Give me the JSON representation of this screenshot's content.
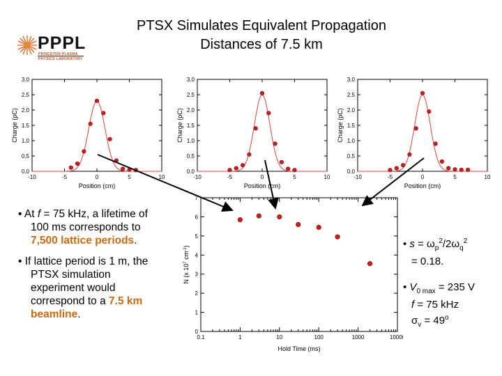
{
  "title": {
    "line1": "PTSX Simulates Equivalent Propagation",
    "line2": "Distances of 7.5 km"
  },
  "logo": {
    "word": "PPPL",
    "sub1": "PRINCETON PLASMA",
    "sub2": "PHYSICS LABORATORY"
  },
  "colors": {
    "marker": "#c81e1e",
    "fit": "#d84040",
    "accent": "#c96a10"
  },
  "left_text": {
    "b1": [
      "• At ",
      "f",
      " = 75 kHz, a lifetime of",
      "100 ms corresponds to",
      "7,500 lattice periods",
      "."
    ],
    "b2": [
      "• If lattice period is 1 m, the",
      "PTSX simulation",
      "experiment would",
      "correspond to a ",
      "7.5 km",
      "beamline",
      "."
    ]
  },
  "right_text": {
    "b1_prefix": "• ",
    "b1_s": "s",
    "b1_eq": " = ",
    "b1_w": "ω",
    "b1_p": "p",
    "b1_sq1": "2",
    "b1_div": "/2",
    "b1_w2": "ω",
    "b1_q": "q",
    "b1_sq2": "2",
    "b1_val": "= 0.18.",
    "b2_prefix": "• ",
    "b2_V": "V",
    "b2_sub": "0 max",
    "b2_v": " = 235 V",
    "b2_f": "f",
    "b2_fv": " = 75 kHz",
    "b2_sigma": "σ",
    "b2_sigsub": "v",
    "b2_sigv": " = 49",
    "b2_deg": "o"
  },
  "chart_data": [
    {
      "type": "scatter",
      "xlabel": "Position (cm)",
      "ylabel": "Charge (pC)",
      "xlim": [
        -10,
        10
      ],
      "ylim": [
        0,
        3
      ],
      "xticks": [
        -10,
        -5,
        0,
        5,
        10
      ],
      "yticks": [
        0.0,
        0.5,
        1.0,
        1.5,
        2.0,
        2.5,
        3.0
      ],
      "x": [
        -4,
        -3,
        -2,
        -1,
        0,
        1,
        2,
        3,
        4,
        5,
        6
      ],
      "y": [
        0.12,
        0.25,
        0.65,
        1.55,
        2.3,
        1.9,
        1.05,
        0.35,
        0.08,
        0.05,
        0.04
      ],
      "fit": "gaussian",
      "fit_center": 0,
      "fit_amp": 2.3,
      "fit_sigma": 1.25
    },
    {
      "type": "scatter",
      "xlabel": "Position (cm)",
      "ylabel": "Charge (pC)",
      "xlim": [
        -10,
        10
      ],
      "ylim": [
        0,
        3
      ],
      "xticks": [
        -10,
        -5,
        0,
        5,
        10
      ],
      "yticks": [
        0.0,
        0.5,
        1.0,
        1.5,
        2.0,
        2.5,
        3.0
      ],
      "x": [
        -5,
        -4,
        -3,
        -2,
        -1,
        0,
        1,
        2,
        3,
        4,
        5
      ],
      "y": [
        0.04,
        0.1,
        0.2,
        0.55,
        1.4,
        2.55,
        1.9,
        0.9,
        0.3,
        0.08,
        0.04
      ],
      "fit": "gaussian",
      "fit_center": 0,
      "fit_amp": 2.5,
      "fit_sigma": 1.2
    },
    {
      "type": "scatter",
      "xlabel": "Position (cm)",
      "ylabel": "Charge (pC)",
      "xlim": [
        -10,
        10
      ],
      "ylim": [
        0,
        3
      ],
      "xticks": [
        -10,
        -5,
        0,
        5,
        10
      ],
      "yticks": [
        0.0,
        0.5,
        1.0,
        1.5,
        2.0,
        2.5,
        3.0
      ],
      "x": [
        -5,
        -4,
        -3,
        -2,
        -1,
        0,
        1,
        2,
        3,
        4,
        5,
        6,
        7
      ],
      "y": [
        0.04,
        0.1,
        0.2,
        0.55,
        1.4,
        2.55,
        1.95,
        0.9,
        0.32,
        0.1,
        0.06,
        0.05,
        0.05
      ],
      "fit": "gaussian",
      "fit_center": 0,
      "fit_amp": 2.5,
      "fit_sigma": 1.2
    },
    {
      "type": "scatter",
      "xlabel": "Hold Time (ms)",
      "ylabel_main": "N (x 10",
      "ylabel_sup": "7",
      "ylabel_mid": " cm",
      "ylabel_sup2": "-1",
      "ylabel_end": ")",
      "xscale": "log",
      "xlim": [
        0.1,
        10000
      ],
      "ylim": [
        0,
        7
      ],
      "xticks": [
        0.1,
        1,
        10,
        100,
        1000,
        10000
      ],
      "xticklabels": [
        "0.1",
        "1",
        "10",
        "100",
        "1000",
        "10000"
      ],
      "yticks": [
        0,
        1,
        2,
        3,
        4,
        5,
        6,
        7
      ],
      "x": [
        1,
        3,
        10,
        30,
        100,
        300,
        2000
      ],
      "y": [
        5.85,
        6.05,
        6.0,
        5.6,
        5.45,
        4.95,
        3.55
      ]
    }
  ]
}
